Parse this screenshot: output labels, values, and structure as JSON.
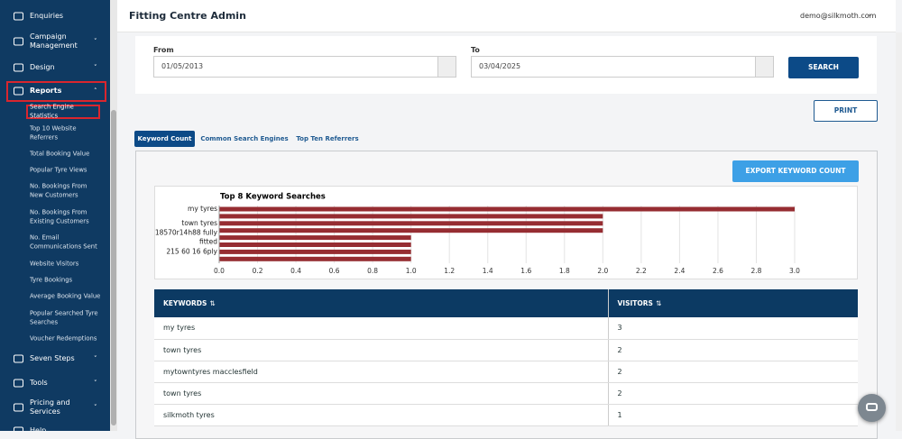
{
  "sidebar": {
    "top_items": [
      "Enquiries",
      "Campaign Management",
      "Design",
      "Reports"
    ],
    "submenu": [
      "Search Engine Statistics",
      "Top 10 Website Referrers",
      "Total Booking Value",
      "Popular Tyre Views",
      "No. Bookings From New Customers",
      "No. Bookings From Existing Customers",
      "No. Email Communications Sent",
      "Website Visitors",
      "Tyre Bookings",
      "Average Booking Value",
      "Popular Searched Tyre Searches",
      "Voucher Redemptions"
    ],
    "bottom_items": [
      "Seven Steps",
      "Tools",
      "Pricing and Services",
      "Help"
    ]
  },
  "header": {
    "title": "Fitting Centre Admin",
    "user": "demo@silkmoth.com"
  },
  "filters": {
    "from_label": "From",
    "from_value": "01/05/2013",
    "to_label": "To",
    "to_value": "03/04/2025",
    "search": "SEARCH"
  },
  "print": "PRINT",
  "tabs": [
    "Keyword Count",
    "Common Search Engines",
    "Top Ten Referrers"
  ],
  "export": "EXPORT KEYWORD COUNT",
  "chart_data": {
    "type": "barh",
    "title": "Top 8 Keyword Searches",
    "categories": [
      "my tyres",
      null,
      "town tyres",
      null,
      "18570r14h88 fully fitted",
      null,
      "215 60 16 6ply",
      null
    ],
    "values": [
      3,
      2,
      2,
      2,
      1,
      1,
      1,
      1
    ],
    "color": "#962d32",
    "xlim": [
      0,
      3.0
    ],
    "xticks": [
      {
        "value": 0,
        "label": "0.0"
      },
      {
        "value": 0.2,
        "label": "0.2"
      },
      {
        "value": 0.4,
        "label": "0.4"
      },
      {
        "value": 0.6,
        "label": "0.6"
      },
      {
        "value": 0.8,
        "label": "0.8"
      },
      {
        "value": 1,
        "label": "1.0"
      },
      {
        "value": 1.2,
        "label": "1.2"
      },
      {
        "value": 1.4,
        "label": "1.4"
      },
      {
        "value": 1.6,
        "label": "1.6"
      },
      {
        "value": 1.8,
        "label": "1.8"
      },
      {
        "value": 2,
        "label": "2.0"
      },
      {
        "value": 2.2,
        "label": "2.2"
      },
      {
        "value": 2.4,
        "label": "2.4"
      },
      {
        "value": 2.6,
        "label": "2.6"
      },
      {
        "value": 2.8,
        "label": "2.8"
      },
      {
        "value": 3,
        "label": "3.0"
      }
    ],
    "grid": true
  },
  "table": {
    "headers": [
      "KEYWORDS",
      "VISITORS"
    ],
    "rows": [
      [
        "my tyres",
        3
      ],
      [
        "town tyres",
        2
      ],
      [
        "mytowntyres macclesfield",
        2
      ],
      [
        "town tyres",
        2
      ],
      [
        "silkmoth tyres",
        1
      ]
    ]
  }
}
